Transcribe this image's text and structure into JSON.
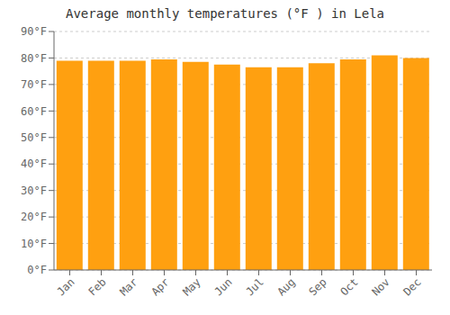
{
  "chart_data": {
    "type": "bar",
    "title": "Average monthly temperatures (°F ) in Lela",
    "categories": [
      "Jan",
      "Feb",
      "Mar",
      "Apr",
      "May",
      "Jun",
      "Jul",
      "Aug",
      "Sep",
      "Oct",
      "Nov",
      "Dec"
    ],
    "values": [
      79.0,
      79.0,
      79.0,
      79.5,
      78.5,
      77.5,
      76.5,
      76.5,
      78.0,
      79.5,
      81.0,
      80.0
    ],
    "color": "#FFA010",
    "ylim": [
      0,
      90
    ],
    "yticks": [
      {
        "value": 0,
        "label": "0°F"
      },
      {
        "value": 10,
        "label": "10°F"
      },
      {
        "value": 20,
        "label": "20°F"
      },
      {
        "value": 30,
        "label": "30°F"
      },
      {
        "value": 40,
        "label": "40°F"
      },
      {
        "value": 50,
        "label": "50°F"
      },
      {
        "value": 60,
        "label": "60°F"
      },
      {
        "value": 70,
        "label": "70°F"
      },
      {
        "value": 80,
        "label": "80°F"
      },
      {
        "value": 90,
        "label": "90°F"
      }
    ],
    "grid": true
  }
}
